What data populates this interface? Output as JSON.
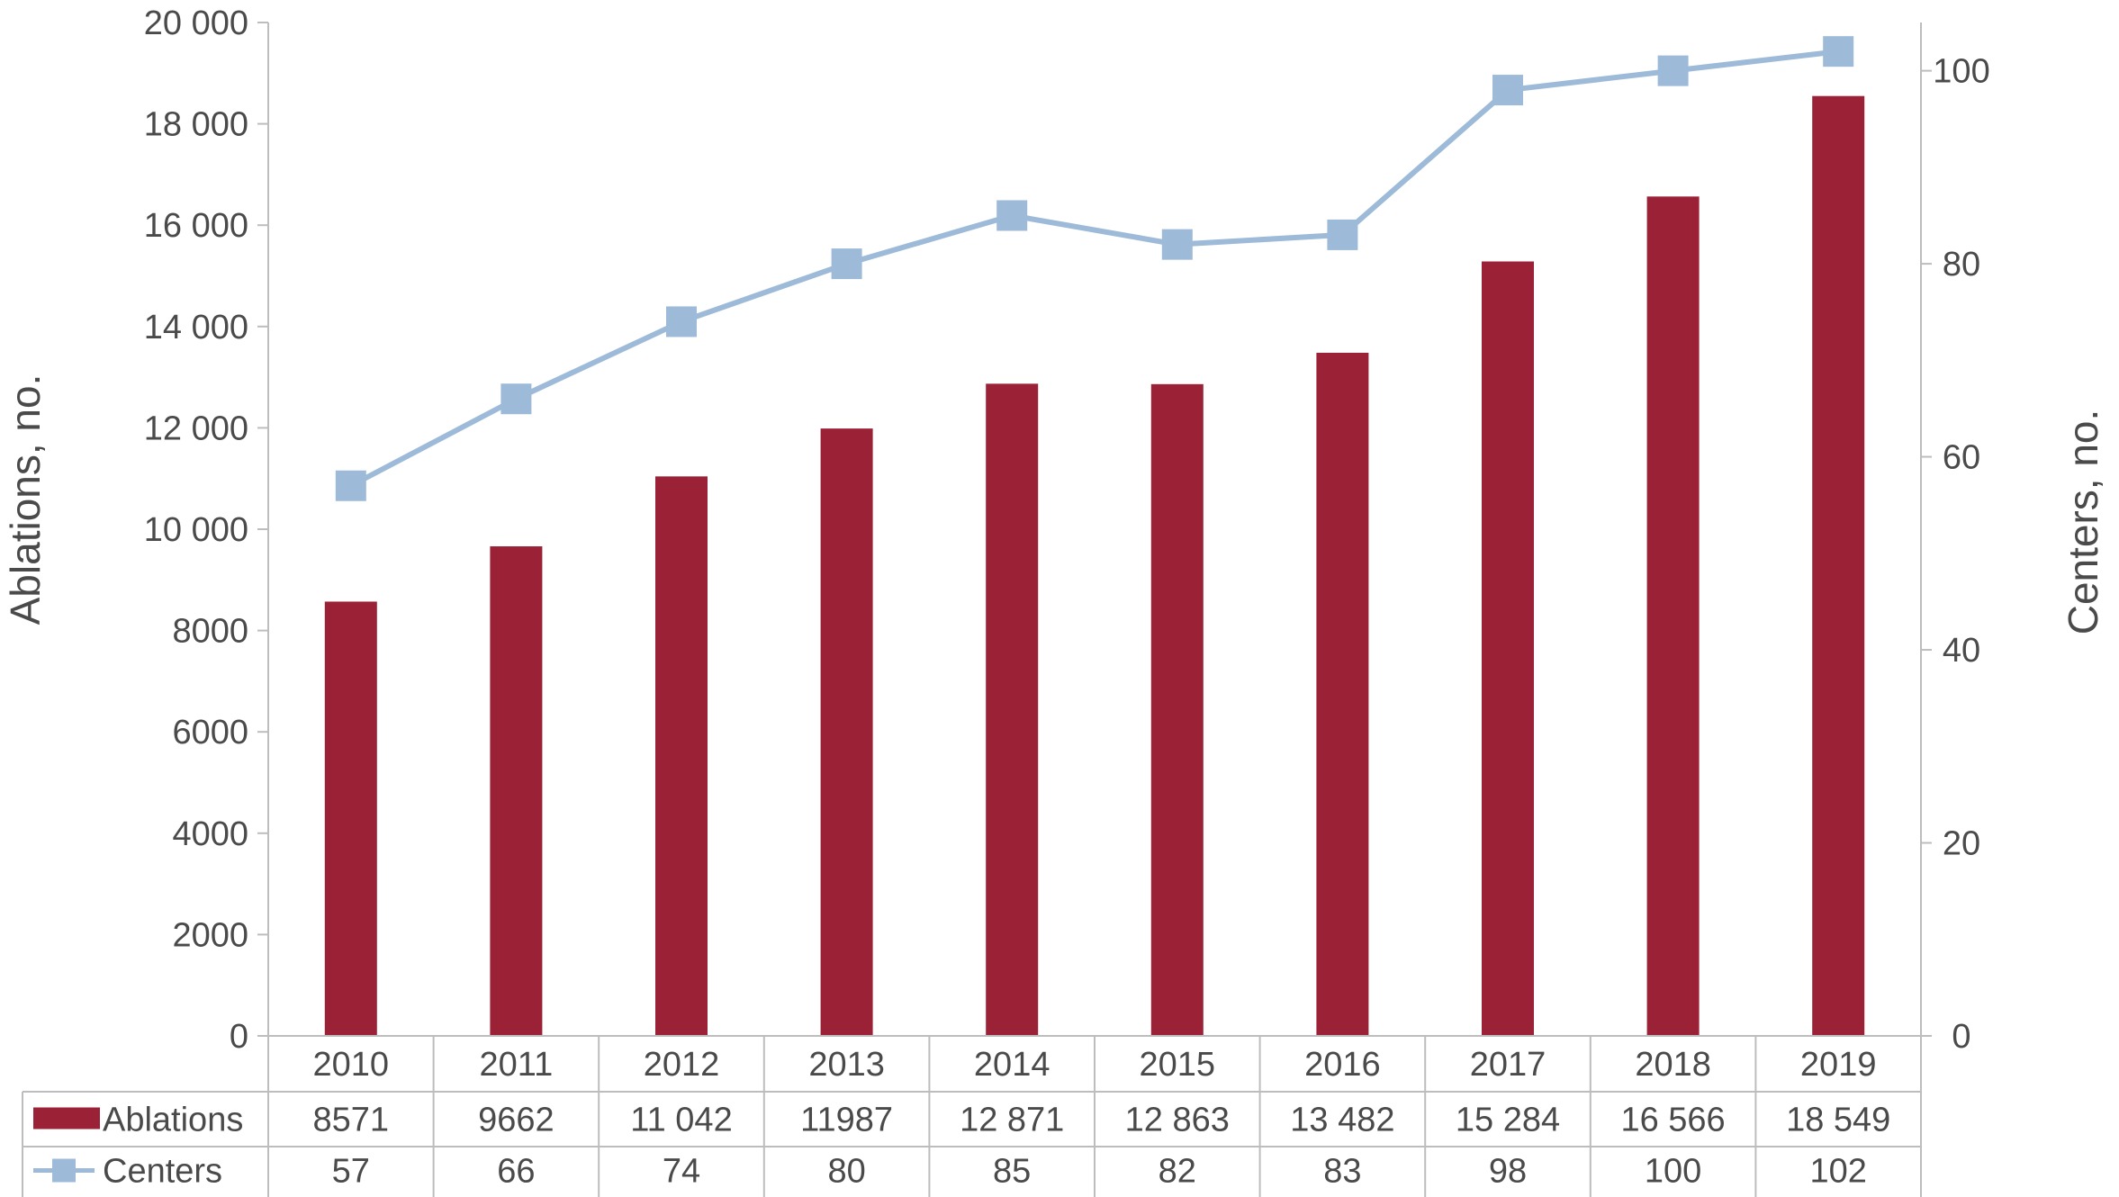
{
  "chart_data": {
    "type": "bar",
    "categories": [
      "2010",
      "2011",
      "2012",
      "2013",
      "2014",
      "2015",
      "2016",
      "2017",
      "2018",
      "2019"
    ],
    "series": [
      {
        "name": "Ablations",
        "type": "bar",
        "axis": "left",
        "color": "#9b2236",
        "values": [
          8571,
          9662,
          11042,
          11987,
          12871,
          12863,
          13482,
          15284,
          16566,
          18549
        ],
        "labels": [
          "8571",
          "9662",
          "11 042",
          "11987",
          "12 871",
          "12 863",
          "13 482",
          "15 284",
          "16 566",
          "18 549"
        ]
      },
      {
        "name": "Centers",
        "type": "line",
        "axis": "right",
        "color": "#9dbbd9",
        "marker": "square",
        "values": [
          57,
          66,
          74,
          80,
          85,
          82,
          83,
          98,
          100,
          102
        ],
        "labels": [
          "57",
          "66",
          "74",
          "80",
          "85",
          "82",
          "83",
          "98",
          "100",
          "102"
        ]
      }
    ],
    "ylabel": "Ablations, no.",
    "ylabel_right": "Centers, no.",
    "ylim": [
      0,
      20000
    ],
    "ylim_right": [
      0,
      105
    ],
    "yticks": [
      {
        "value": 0,
        "label": "0"
      },
      {
        "value": 2000,
        "label": "2000"
      },
      {
        "value": 4000,
        "label": "4000"
      },
      {
        "value": 6000,
        "label": "6000"
      },
      {
        "value": 8000,
        "label": "8000"
      },
      {
        "value": 10000,
        "label": "10 000"
      },
      {
        "value": 12000,
        "label": "12 000"
      },
      {
        "value": 14000,
        "label": "14 000"
      },
      {
        "value": 16000,
        "label": "16 000"
      },
      {
        "value": 18000,
        "label": "18 000"
      },
      {
        "value": 20000,
        "label": "20 000"
      }
    ],
    "yticks_right": [
      {
        "value": 0,
        "label": "0"
      },
      {
        "value": 20,
        "label": "20"
      },
      {
        "value": 40,
        "label": "40"
      },
      {
        "value": 60,
        "label": "60"
      },
      {
        "value": 80,
        "label": "80"
      },
      {
        "value": 100,
        "label": "100"
      }
    ],
    "grid": false,
    "legend": "data table below chart"
  }
}
